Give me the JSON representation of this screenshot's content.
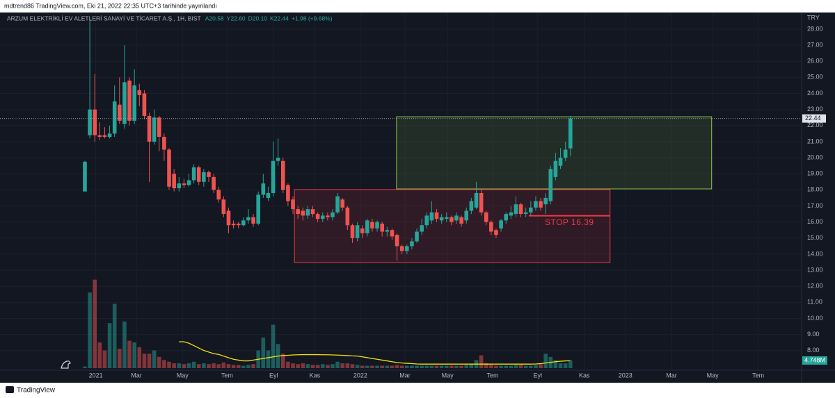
{
  "header": {
    "published": "mdtrend86 TradingView.com, Eki 21, 2022 22:35 UTC+3 tarihinde yayınlandı"
  },
  "footer": {
    "brand": "TradingView"
  },
  "chart_data": {
    "type": "candlestick",
    "title": "ARZUM ELEKTRİKLİ EV ALETLERİ SANAYİ VE TİCARET A.Ş., 1H, BIST",
    "ohlc_legend": [
      "A20.58",
      "Y22.60",
      "D20.10",
      "K22.44",
      "+1.98 (+9.68%)"
    ],
    "currency": "TRY",
    "up_color": "#26a69a",
    "down_color": "#ef5350",
    "volume_ma_color": "#f5e10a",
    "x": [
      0,
      1,
      2,
      3,
      4,
      5,
      6,
      7,
      8,
      9,
      10,
      11,
      12,
      13,
      14,
      15,
      16,
      17,
      18,
      19,
      20,
      21,
      22,
      23,
      24,
      25,
      26,
      27,
      28,
      29,
      30,
      31,
      32,
      33,
      34,
      35,
      36,
      37,
      38,
      39,
      40,
      41,
      42,
      43,
      44,
      45,
      46,
      47,
      48,
      49,
      50,
      51,
      52,
      53,
      54,
      55,
      56,
      57,
      58,
      59,
      60,
      61,
      62,
      63,
      64,
      65,
      66,
      67,
      68,
      69,
      70,
      71,
      72,
      73,
      74,
      75,
      76,
      77,
      78,
      79,
      80,
      81,
      82,
      83,
      84,
      85,
      86,
      87,
      88,
      89,
      90,
      91,
      92,
      93,
      94,
      95,
      96,
      97,
      98
    ],
    "open": [
      17.9,
      21.4,
      23.0,
      21.4,
      21.4,
      21.3,
      21.5,
      23.3,
      22.1,
      24.8,
      22.3,
      24.2,
      24.0,
      22.6,
      21.0,
      22.5,
      21.3,
      20.5,
      19.0,
      18.1,
      18.4,
      18.3,
      18.6,
      19.4,
      18.5,
      19.1,
      18.8,
      18.0,
      17.4,
      16.7,
      15.9,
      15.9,
      15.8,
      16.1,
      16.3,
      15.9,
      17.7,
      17.5,
      17.8,
      19.8,
      19.8,
      18.3,
      17.4,
      16.8,
      16.7,
      16.4,
      16.8,
      16.5,
      16.2,
      16.4,
      16.3,
      16.6,
      17.4,
      16.9,
      15.8,
      15.0,
      15.6,
      15.3,
      16.0,
      15.6,
      15.9,
      15.4,
      15.5,
      15.2,
      14.5,
      14.2,
      14.5,
      14.8,
      15.4,
      15.8,
      16.1,
      16.6,
      16.1,
      16.2,
      16.3,
      16.1,
      16.3,
      16.1,
      16.7,
      16.9,
      17.8,
      16.6,
      16.0,
      15.5,
      15.6,
      16.1,
      16.4,
      16.5,
      17.1,
      16.5,
      16.6,
      16.9,
      17.3,
      17.1,
      17.3,
      18.8,
      19.5,
      20.0,
      20.58
    ],
    "high": [
      19.8,
      28.6,
      25.2,
      22.2,
      21.9,
      22.0,
      24.5,
      25.0,
      27.0,
      25.0,
      25.5,
      24.6,
      24.2,
      22.8,
      23.0,
      22.6,
      21.5,
      20.6,
      19.3,
      18.8,
      18.7,
      19.0,
      19.6,
      19.5,
      19.3,
      19.2,
      19.0,
      18.2,
      17.6,
      16.9,
      16.1,
      16.0,
      16.3,
      16.8,
      16.5,
      17.9,
      19.0,
      18.2,
      21.0,
      21.2,
      20.0,
      18.4,
      17.6,
      17.0,
      16.9,
      17.0,
      17.0,
      16.6,
      16.6,
      16.6,
      16.8,
      17.8,
      17.5,
      17.0,
      15.9,
      16.0,
      15.8,
      16.2,
      16.2,
      16.1,
      16.0,
      15.7,
      15.6,
      15.3,
      14.6,
      14.6,
      15.0,
      15.6,
      16.2,
      16.6,
      17.3,
      16.8,
      16.5,
      16.6,
      16.4,
      16.6,
      16.4,
      16.9,
      17.5,
      18.5,
      18.0,
      16.7,
      16.1,
      15.6,
      16.2,
      16.6,
      17.0,
      17.6,
      17.2,
      16.9,
      17.3,
      17.6,
      17.5,
      17.8,
      19.5,
      20.3,
      20.6,
      21.0,
      22.6
    ],
    "low": [
      17.9,
      21.2,
      21.0,
      21.1,
      21.2,
      21.2,
      21.3,
      22.1,
      21.8,
      22.0,
      22.1,
      23.2,
      22.4,
      18.5,
      20.8,
      20.4,
      19.8,
      18.0,
      17.9,
      17.9,
      18.1,
      18.2,
      18.4,
      18.3,
      18.2,
      18.5,
      17.8,
      17.2,
      16.3,
      15.3,
      15.6,
      15.6,
      15.7,
      15.9,
      15.7,
      15.8,
      17.5,
      17.3,
      17.6,
      19.5,
      17.8,
      17.0,
      16.5,
      16.2,
      16.1,
      16.2,
      16.3,
      16.0,
      16.0,
      16.1,
      16.1,
      16.5,
      16.7,
      15.5,
      14.7,
      14.8,
      15.0,
      15.1,
      15.4,
      15.4,
      15.1,
      15.1,
      14.9,
      13.6,
      14.0,
      14.0,
      14.3,
      14.7,
      15.2,
      15.6,
      15.9,
      16.0,
      15.9,
      16.0,
      15.8,
      15.9,
      15.7,
      15.9,
      16.5,
      16.8,
      16.4,
      15.8,
      15.2,
      15.0,
      15.4,
      15.9,
      16.2,
      16.3,
      16.3,
      16.3,
      16.4,
      16.7,
      16.7,
      16.5,
      17.1,
      18.6,
      19.3,
      19.8,
      20.1
    ],
    "close": [
      19.75,
      23.0,
      21.4,
      21.3,
      21.3,
      21.5,
      23.5,
      22.3,
      24.7,
      22.3,
      24.5,
      23.9,
      22.6,
      21.0,
      22.5,
      21.3,
      20.5,
      18.2,
      18.1,
      18.4,
      18.3,
      18.6,
      19.4,
      18.5,
      19.1,
      18.8,
      18.0,
      17.4,
      16.5,
      15.8,
      15.8,
      15.8,
      16.1,
      16.3,
      15.9,
      17.7,
      18.4,
      17.8,
      19.8,
      20.0,
      18.0,
      17.3,
      16.8,
      16.5,
      16.4,
      16.8,
      16.5,
      16.2,
      16.4,
      16.3,
      16.6,
      17.6,
      16.9,
      15.8,
      15.0,
      15.8,
      15.3,
      16.1,
      15.6,
      16.0,
      15.4,
      15.5,
      15.1,
      14.5,
      14.2,
      14.5,
      14.8,
      15.4,
      15.8,
      16.4,
      16.6,
      16.2,
      16.3,
      16.3,
      16.0,
      16.4,
      15.9,
      16.7,
      17.3,
      17.8,
      16.6,
      16.0,
      15.4,
      15.2,
      16.1,
      16.5,
      16.6,
      17.1,
      16.5,
      16.6,
      16.9,
      17.3,
      16.9,
      17.5,
      19.3,
      19.8,
      20.0,
      20.5,
      22.44
    ],
    "volume": [
      1,
      47,
      55,
      16,
      11,
      28,
      40,
      12,
      29,
      17,
      16,
      13,
      9,
      9,
      11,
      7,
      5,
      4,
      3,
      3,
      2.5,
      3,
      4,
      2.5,
      3,
      2.5,
      3,
      2.5,
      3.5,
      2.5,
      2,
      2,
      1.5,
      2,
      2.5,
      11,
      19,
      11,
      27,
      15,
      9,
      4,
      3,
      2.5,
      3,
      2.5,
      2,
      2,
      2.5,
      2,
      2.5,
      4,
      3,
      3,
      2.5,
      2,
      1.5,
      1.5,
      1.5,
      1.5,
      1.5,
      1.5,
      1.5,
      2,
      1.5,
      1.5,
      1.5,
      1.5,
      1.5,
      1.5,
      1.5,
      1.5,
      1.5,
      1.5,
      1.5,
      1.5,
      1.5,
      2,
      2.5,
      5,
      8,
      3,
      2,
      1.5,
      1.5,
      1.5,
      1.5,
      2,
      2,
      1.5,
      1.5,
      2,
      2.5,
      9,
      7,
      5,
      3,
      3,
      4.748
    ],
    "volume_ma": [
      null,
      null,
      null,
      null,
      null,
      null,
      null,
      null,
      null,
      null,
      null,
      null,
      null,
      null,
      null,
      null,
      null,
      null,
      null,
      16.4,
      16.4,
      15.5,
      14,
      12.5,
      11,
      10,
      9,
      8.5,
      7.5,
      6.5,
      5.5,
      5,
      4.5,
      4.5,
      5,
      5.5,
      6,
      6.5,
      7,
      7.5,
      7.8,
      8,
      8.2,
      8.3,
      8.4,
      8.4,
      8.4,
      8.4,
      8.3,
      8.3,
      8.2,
      8.1,
      8,
      7.8,
      7.6,
      7.5,
      7,
      6.5,
      6,
      5.5,
      5,
      4.5,
      4,
      3.5,
      3.2,
      3,
      2.8,
      2.6,
      2.5,
      2.5,
      2.5,
      2.5,
      2.5,
      2.5,
      2.5,
      2.5,
      2.5,
      2.5,
      2.5,
      2.5,
      2.5,
      2.5,
      2.5,
      2.5,
      2.5,
      2.5,
      2.5,
      2.5,
      2.5,
      2.5,
      2.5,
      2.6,
      2.8,
      3.2,
      3.6,
      4,
      4.3,
      4.5,
      4.6
    ],
    "volume_ylim": [
      0,
      57
    ],
    "volume_label": {
      "value": 4.748,
      "label": "4.748M"
    },
    "last_price": 22.44,
    "xlim": [
      -17.13,
      144.66
    ],
    "xticks": [
      {
        "value": 2.2,
        "label": "2021"
      },
      {
        "value": 10.4,
        "label": "Mar"
      },
      {
        "value": 19.7,
        "label": "May"
      },
      {
        "value": 28.7,
        "label": "Tem"
      },
      {
        "value": 38.1,
        "label": "Eyl"
      },
      {
        "value": 46.4,
        "label": "Kas"
      },
      {
        "value": 55.6,
        "label": "2022"
      },
      {
        "value": 64.6,
        "label": "Mar"
      },
      {
        "value": 73.2,
        "label": "May"
      },
      {
        "value": 82.3,
        "label": "Tem"
      },
      {
        "value": 91.4,
        "label": "Eyl"
      },
      {
        "value": 100.8,
        "label": "Kas"
      },
      {
        "value": 109.1,
        "label": "2023"
      },
      {
        "value": 118.4,
        "label": "Mar"
      },
      {
        "value": 126.7,
        "label": "May"
      },
      {
        "value": 135.9,
        "label": "Tem"
      }
    ],
    "ylim": [
      6.65,
      28.43
    ],
    "yticks": [
      {
        "value": 8,
        "label": "8.00"
      },
      {
        "value": 9,
        "label": "9.00"
      },
      {
        "value": 10,
        "label": "10.00"
      },
      {
        "value": 11,
        "label": "11.00"
      },
      {
        "value": 12,
        "label": "12.00"
      },
      {
        "value": 13,
        "label": "13.00"
      },
      {
        "value": 14,
        "label": "14.00"
      },
      {
        "value": 15,
        "label": "15.00"
      },
      {
        "value": 16,
        "label": "16.00"
      },
      {
        "value": 17,
        "label": "17.00"
      },
      {
        "value": 18,
        "label": "18.00"
      },
      {
        "value": 19,
        "label": "19.00"
      },
      {
        "value": 20,
        "label": "20.00"
      },
      {
        "value": 21,
        "label": "21.00"
      },
      {
        "value": 22,
        "label": "22.00"
      },
      {
        "value": 23,
        "label": "23.00"
      },
      {
        "value": 24,
        "label": "24.00"
      },
      {
        "value": 25,
        "label": "25.00"
      },
      {
        "value": 26,
        "label": "26.00"
      },
      {
        "value": 27,
        "label": "27.00"
      },
      {
        "value": 28,
        "label": "28.00"
      }
    ],
    "zones": [
      {
        "x": [
          62.9,
          126.5
        ],
        "y": [
          18.06,
          22.55
        ],
        "color": "#8bc34a"
      },
      {
        "x": [
          42.3,
          106
        ],
        "y": [
          13.48,
          18.02
        ],
        "color": "#f23645"
      }
    ],
    "stop": {
      "value": 16.39,
      "x": [
        89.6,
        106
      ],
      "label": "STOP 16.39",
      "color": "#f23645"
    }
  }
}
